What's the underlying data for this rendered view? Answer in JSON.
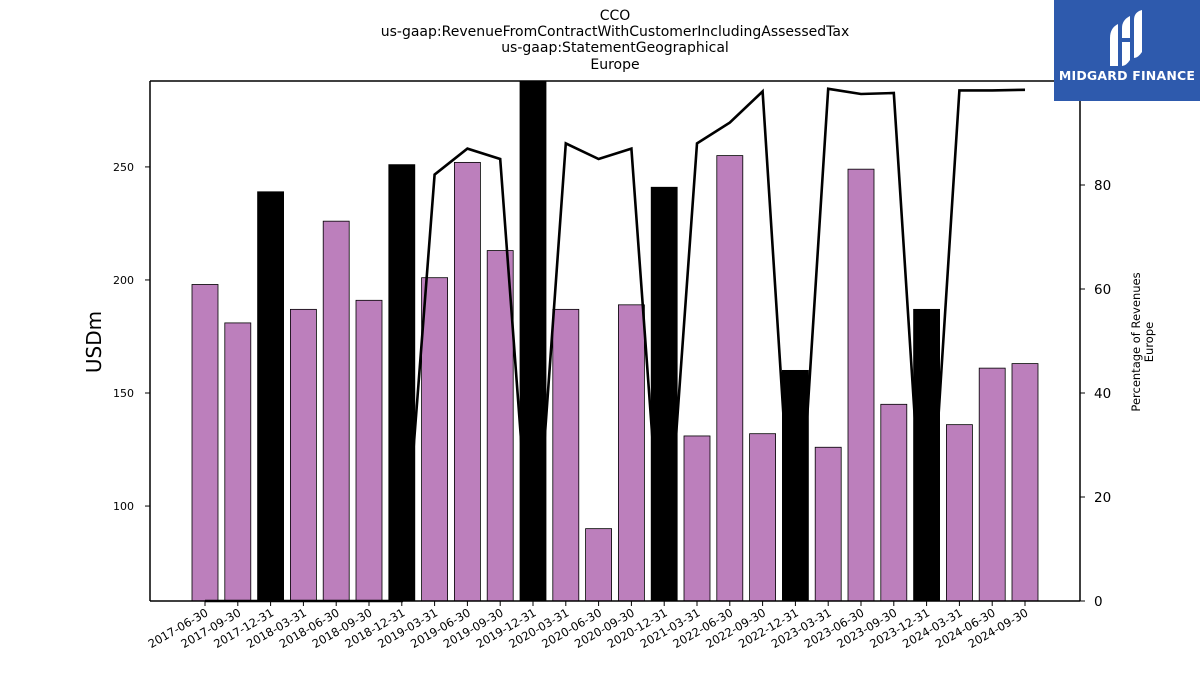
{
  "chart_data": {
    "type": "bar",
    "title_lines": [
      "CCO",
      "us-gaap:RevenueFromContractWithCustomerIncludingAssessedTax",
      "us-gaap:StatementGeographical",
      "Europe"
    ],
    "ylabel": "USDm",
    "y2label_lines": [
      "Percentage of Revenues",
      "Europe"
    ],
    "categories": [
      "2017-06-30",
      "2017-09-30",
      "2017-12-31",
      "2018-03-31",
      "2018-06-30",
      "2018-09-30",
      "2018-12-31",
      "2019-03-31",
      "2019-06-30",
      "2019-09-30",
      "2019-12-31",
      "2020-03-31",
      "2020-06-30",
      "2020-09-30",
      "2020-12-31",
      "2021-03-31",
      "2022-06-30",
      "2022-09-30",
      "2022-12-31",
      "2023-03-31",
      "2023-06-30",
      "2023-09-30",
      "2023-12-31",
      "2024-03-31",
      "2024-06-30",
      "2024-09-30"
    ],
    "series": [
      {
        "type": "bar",
        "axis": "left",
        "values": [
          198,
          181,
          239,
          187,
          226,
          191,
          251,
          201,
          252,
          213,
          290,
          187,
          90,
          189,
          241,
          131,
          255,
          132,
          160,
          126,
          249,
          145,
          187,
          136,
          161,
          163
        ],
        "colors": [
          "#bc7fbc",
          "#bc7fbc",
          "#000000",
          "#bc7fbc",
          "#bc7fbc",
          "#bc7fbc",
          "#000000",
          "#bc7fbc",
          "#bc7fbc",
          "#bc7fbc",
          "#000000",
          "#bc7fbc",
          "#bc7fbc",
          "#bc7fbc",
          "#000000",
          "#bc7fbc",
          "#bc7fbc",
          "#bc7fbc",
          "#000000",
          "#bc7fbc",
          "#bc7fbc",
          "#bc7fbc",
          "#000000",
          "#bc7fbc",
          "#bc7fbc",
          "#bc7fbc"
        ]
      },
      {
        "type": "line",
        "axis": "right",
        "color": "#000000",
        "values": [
          0,
          0,
          0,
          0,
          0,
          0,
          0,
          82,
          87,
          85,
          0,
          88,
          85,
          87,
          0,
          88,
          92,
          98,
          0,
          98.5,
          97.5,
          97.7,
          0,
          98.2,
          98.2,
          98.3
        ]
      }
    ],
    "ylim": [
      58,
      288
    ],
    "yticks": [
      100,
      150,
      200,
      250
    ],
    "y2lim": [
      0,
      100
    ],
    "y2ticks": [
      0,
      20,
      40,
      60,
      80,
      100
    ],
    "grid": false
  },
  "logo": {
    "text": "MIDGARD FINANCE",
    "bg_color": "#2e5aad"
  }
}
